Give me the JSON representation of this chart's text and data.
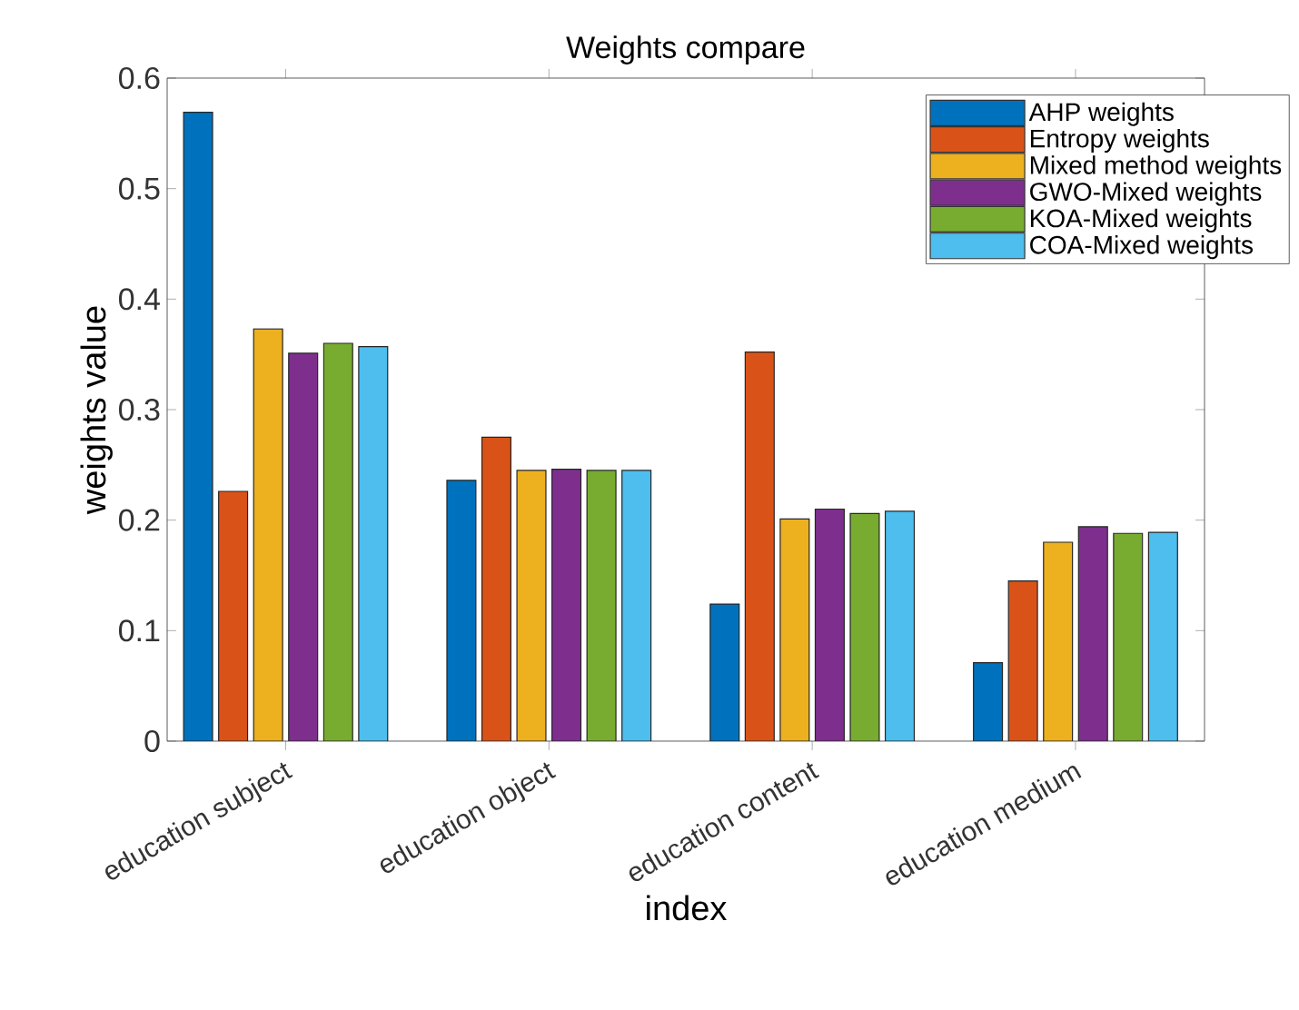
{
  "chart_data": {
    "type": "bar",
    "title": "Weights compare",
    "xlabel": "index",
    "ylabel": "weights value",
    "categories": [
      "education subject",
      "education object",
      "education content",
      "education medium"
    ],
    "series": [
      {
        "name": "AHP weights",
        "color": "#0072bd",
        "values": [
          0.569,
          0.236,
          0.124,
          0.071
        ]
      },
      {
        "name": "Entropy weights",
        "color": "#d95319",
        "values": [
          0.226,
          0.275,
          0.352,
          0.145
        ]
      },
      {
        "name": "Mixed method weights",
        "color": "#edb120",
        "values": [
          0.373,
          0.245,
          0.201,
          0.18
        ]
      },
      {
        "name": "GWO-Mixed weights",
        "color": "#7e2f8e",
        "values": [
          0.351,
          0.246,
          0.21,
          0.194
        ]
      },
      {
        "name": "KOA-Mixed weights",
        "color": "#77ac30",
        "values": [
          0.36,
          0.245,
          0.206,
          0.188
        ]
      },
      {
        "name": "COA-Mixed weights",
        "color": "#4dbeee",
        "values": [
          0.357,
          0.245,
          0.208,
          0.189
        ]
      }
    ],
    "ylim": [
      0,
      0.6
    ],
    "yticks": [
      0,
      0.1,
      0.2,
      0.3,
      0.4,
      0.5,
      0.6
    ],
    "grid": false,
    "legend": "top right"
  }
}
